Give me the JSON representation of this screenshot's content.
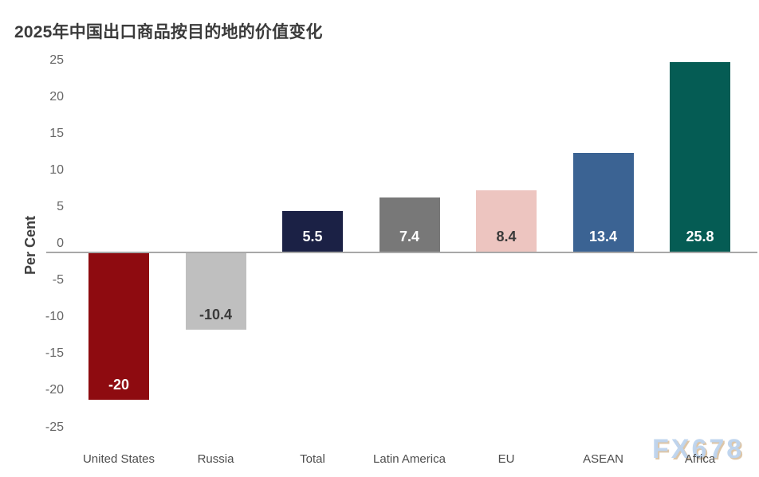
{
  "watermark": "FX678",
  "chart_data": {
    "type": "bar",
    "title": "2025年中国出口商品按目的地的价值变化",
    "categories": [
      "United States",
      "Russia",
      "Total",
      "Latin America",
      "EU",
      "ASEAN",
      "Africa"
    ],
    "values": [
      -20,
      -10.4,
      5.5,
      7.4,
      8.4,
      13.4,
      25.8
    ],
    "data_labels": [
      "-20",
      "-10.4",
      "5.5",
      "7.4",
      "8.4",
      "13.4",
      "25.8"
    ],
    "bar_colors": [
      "#8E0B10",
      "#BFBFBF",
      "#1B2145",
      "#787878",
      "#EDC5C0",
      "#3B6393",
      "#055C54"
    ],
    "label_colors": [
      "#FFFFFF",
      "#3A3A3A",
      "#FFFFFF",
      "#FFFFFF",
      "#3A3A3A",
      "#FFFFFF",
      "#FFFFFF"
    ],
    "xlabel": "",
    "ylabel": "Per Cent",
    "ylim": [
      -25,
      25
    ],
    "yticks": [
      25,
      20,
      15,
      10,
      5,
      0,
      -5,
      -10,
      -15,
      -20,
      -25
    ],
    "grid": false,
    "legend": false,
    "baseline_color": "#A8A8A8",
    "tick_label_color": "#666666"
  }
}
